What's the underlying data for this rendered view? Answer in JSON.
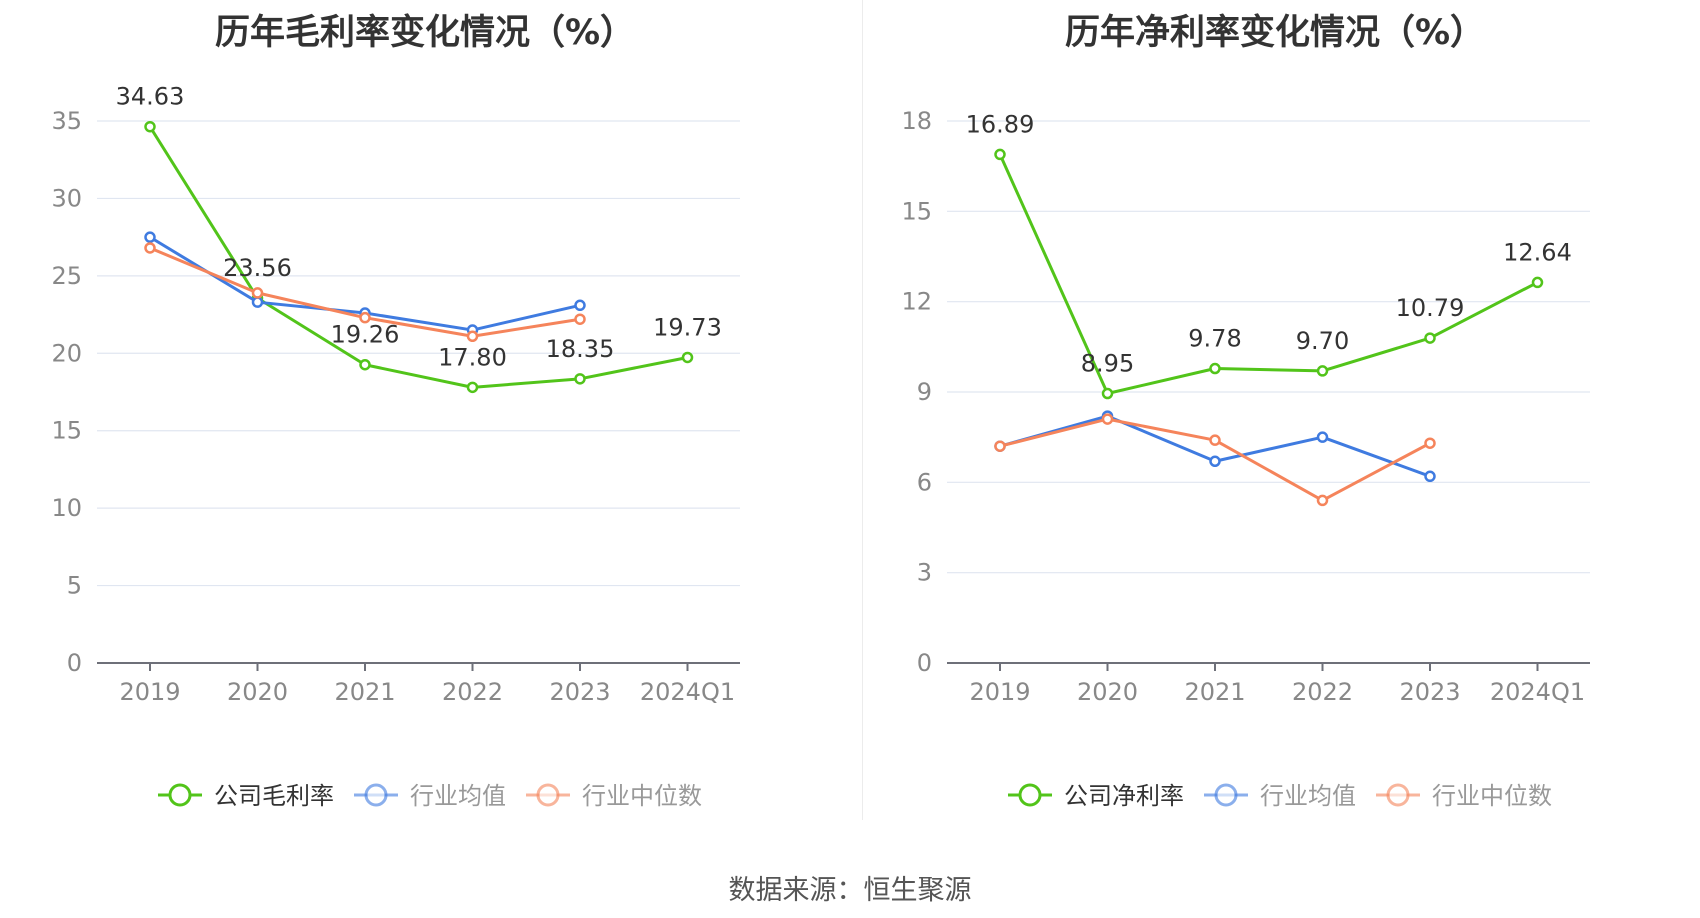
{
  "chart_data": [
    {
      "type": "line",
      "title": "历年毛利率变化情况（%）",
      "categories": [
        "2019",
        "2020",
        "2021",
        "2022",
        "2023",
        "2024Q1"
      ],
      "ylim": [
        0,
        35
      ],
      "yticks": [
        0,
        5,
        10,
        15,
        20,
        25,
        30,
        35
      ],
      "grid": true,
      "legend_position": "bottom",
      "series": [
        {
          "name": "公司毛利率",
          "color": "#52c41a",
          "values": [
            34.63,
            23.56,
            19.26,
            17.8,
            18.35,
            19.73
          ],
          "labels": [
            "34.63",
            "23.56",
            "19.26",
            "17.80",
            "18.35",
            "19.73"
          ]
        },
        {
          "name": "行业均值",
          "color": "#3f7be0",
          "values": [
            27.5,
            23.3,
            22.6,
            21.5,
            23.1,
            null
          ]
        },
        {
          "name": "行业中位数",
          "color": "#f5845b",
          "values": [
            26.8,
            23.9,
            22.3,
            21.1,
            22.2,
            null
          ]
        }
      ]
    },
    {
      "type": "line",
      "title": "历年净利率变化情况（%）",
      "categories": [
        "2019",
        "2020",
        "2021",
        "2022",
        "2023",
        "2024Q1"
      ],
      "ylim": [
        0,
        18
      ],
      "yticks": [
        0,
        3,
        6,
        9,
        12,
        15,
        18
      ],
      "grid": true,
      "legend_position": "bottom",
      "series": [
        {
          "name": "公司净利率",
          "color": "#52c41a",
          "values": [
            16.89,
            8.95,
            9.78,
            9.7,
            10.79,
            12.64
          ],
          "labels": [
            "16.89",
            "8.95",
            "9.78",
            "9.70",
            "10.79",
            "12.64"
          ]
        },
        {
          "name": "行业均值",
          "color": "#3f7be0",
          "values": [
            7.2,
            8.2,
            6.7,
            7.5,
            6.2,
            null
          ]
        },
        {
          "name": "行业中位数",
          "color": "#f5845b",
          "values": [
            7.2,
            8.1,
            7.4,
            5.4,
            7.3,
            null
          ]
        }
      ]
    }
  ],
  "footer": {
    "source": "数据来源：恒生聚源"
  }
}
